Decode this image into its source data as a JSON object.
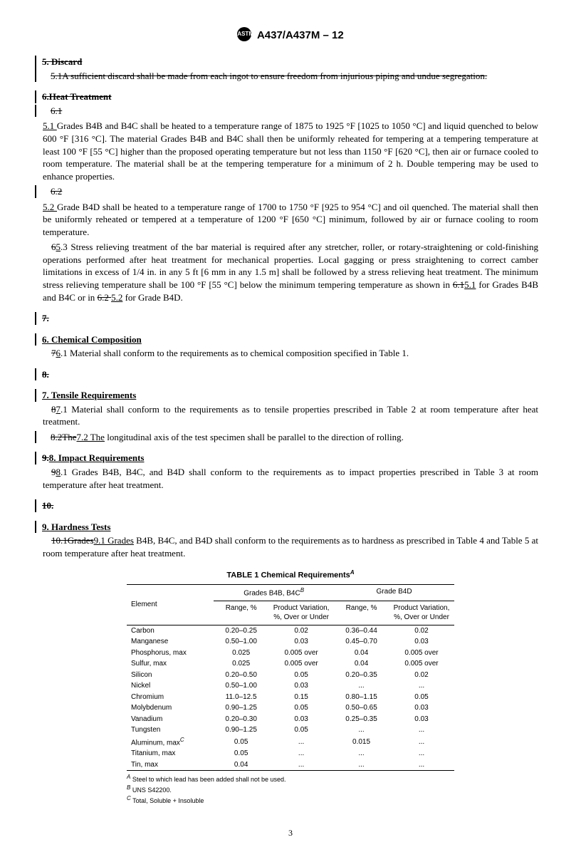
{
  "header": {
    "designation": "A437/A437M – 12",
    "logo_text": "ASTM"
  },
  "sec5": {
    "head": "5. Discard",
    "body": "5.1A sufficient discard shall be made from each ingot to ensure freedom from injurious piping and undue segregation."
  },
  "heat": {
    "head_old": "6.Heat Treatment",
    "n61": "6.1",
    "n51": "5.1 ",
    "p51": "Grades B4B and B4C shall be heated to a temperature range of 1875 to 1925 °F [1025 to 1050 °C] and liquid quenched to below 600 °F [316 °C]. The material Grades B4B and B4C shall then be uniformly reheated for tempering at a tempering temperature at least 100 °F [55 °C] higher than the proposed operating temperature but not less than 1150 °F [620 °C], then air or furnace cooled to room temperature. The material shall be at the tempering temperature for a minimum of 2 h. Double tempering may be used to enhance properties.",
    "n62": "6.2",
    "n52": "5.2 ",
    "p52": "Grade B4D shall be heated to a temperature range of 1700 to 1750 °F [925 to 954 °C] and oil quenched. The material shall then be uniformly reheated or tempered at a temperature of 1200 °F [650 °C] minimum, followed by air or furnace cooling to room temperature.",
    "p53a_old": "6",
    "p53a_new": "5",
    "p53a_tail": ".3  Stress relieving treatment of the bar material is required after any stretcher, roller, or rotary-straightening or cold-finishing operations performed after heat treatment for mechanical properties. Local gagging or press straightening to correct camber limitations in excess of 1/4 in. in any 5 ft [6 mm in any 1.5 m] shall be followed by a stress relieving heat treatment. The minimum stress relieving temperature shall be 100 °F [55 °C] below the minimum tempering temperature as shown in ",
    "ref61_old": "6.1",
    "ref51_new": "5.1",
    "p53b": " for Grades B4B and B4C or in ",
    "ref62_old": "6.2 ",
    "ref52_new": "5.2",
    "p53c": " for Grade B4D."
  },
  "sec7old": "7.",
  "chem": {
    "head": "6.  Chemical Composition",
    "n_old": "7",
    "n_new": "6",
    "tail": ".1  Material shall conform to the requirements as to chemical composition specified in Table 1."
  },
  "sec8old": "8.",
  "tensile": {
    "head": "7.  Tensile Requirements",
    "n1_old": "8",
    "n1_new": "7",
    "p1_tail": ".1  Material shall conform to the requirements as to tensile properties prescribed in Table 2 at room temperature after heat treatment.",
    "n2_old": "8.2The",
    "n2_new": "7.2  The",
    "p2_tail": " longitudinal axis of the test specimen shall be parallel to the direction of rolling."
  },
  "impact": {
    "head_old": "9.",
    "head_new": "8.  Impact Requirements",
    "n_old": "9",
    "n_new": "8",
    "tail": ".1  Grades B4B, B4C, and B4D shall conform to the requirements as to impact properties prescribed in Table 3 at room temperature after heat treatment."
  },
  "sec10old": "10.",
  "hardness": {
    "head": "9.  Hardness Tests",
    "n_old": "10.1Grades",
    "n_new": "9.1  Grades",
    "tail": " B4B, B4C, and B4D shall conform to the requirements as to hardness as prescribed in Table 4 and Table 5 at room temperature after heat treatment."
  },
  "table1": {
    "title": "TABLE 1   Chemical Requirements",
    "supA": "A",
    "col_element": "Element",
    "col_g1": "Grades B4B, B4C",
    "supB": "B",
    "col_g2": "Grade B4D",
    "sub_range": "Range, %",
    "sub_var": "Product Variation, %, Over or Under",
    "rows": [
      {
        "el": "Carbon",
        "r1": "0.20–0.25",
        "v1": "0.02",
        "r2": "0.36–0.44",
        "v2": "0.02"
      },
      {
        "el": "Manganese",
        "r1": "0.50–1.00",
        "v1": "0.03",
        "r2": "0.45–0.70",
        "v2": "0.03"
      },
      {
        "el": "Phosphorus, max",
        "r1": "0.025",
        "v1": "0.005 over",
        "r2": "0.04",
        "v2": "0.005 over"
      },
      {
        "el": "Sulfur, max",
        "r1": "0.025",
        "v1": "0.005 over",
        "r2": "0.04",
        "v2": "0.005 over"
      },
      {
        "el": "Silicon",
        "r1": "0.20–0.50",
        "v1": "0.05",
        "r2": "0.20–0.35",
        "v2": "0.02"
      },
      {
        "el": "Nickel",
        "r1": "0.50–1.00",
        "v1": "0.03",
        "r2": "...",
        "v2": "..."
      },
      {
        "el": "Chromium",
        "r1": "11.0–12.5",
        "v1": "0.15",
        "r2": "0.80–1.15",
        "v2": "0.05"
      },
      {
        "el": "Molybdenum",
        "r1": "0.90–1.25",
        "v1": "0.05",
        "r2": "0.50–0.65",
        "v2": "0.03"
      },
      {
        "el": "Vanadium",
        "r1": "0.20–0.30",
        "v1": "0.03",
        "r2": "0.25–0.35",
        "v2": "0.03"
      },
      {
        "el": "Tungsten",
        "r1": "0.90–1.25",
        "v1": "0.05",
        "r2": "...",
        "v2": "..."
      },
      {
        "el": "Aluminum, max",
        "sup": "C",
        "r1": "0.05",
        "v1": "...",
        "r2": "0.015",
        "v2": "..."
      },
      {
        "el": "Titanium, max",
        "r1": "0.05",
        "v1": "...",
        "r2": "...",
        "v2": "..."
      },
      {
        "el": "Tin, max",
        "r1": "0.04",
        "v1": "...",
        "r2": "...",
        "v2": "..."
      }
    ],
    "fnA_label": "A",
    "fnA": " Steel to which lead has been added shall not be used.",
    "fnB_label": "B",
    "fnB": " UNS S42200.",
    "fnC_label": "C",
    "fnC": " Total, Soluble + Insoluble"
  },
  "pagenum": "3"
}
